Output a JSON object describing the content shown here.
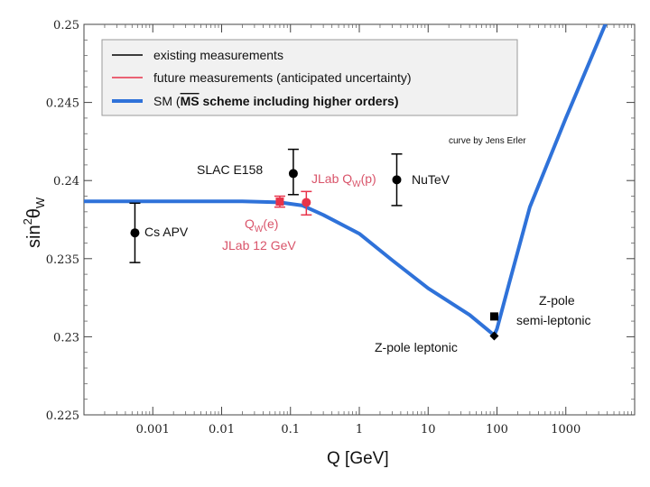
{
  "chart_data": {
    "type": "scatter",
    "title": "",
    "xlabel": "Q [GeV]",
    "ylabel_base": "sin",
    "ylabel_sup": "2",
    "ylabel_theta": "θ",
    "ylabel_sub": "W",
    "xscale": "log",
    "xlim": [
      0.0001,
      10000
    ],
    "ylim": [
      0.225,
      0.25
    ],
    "x_ticks": [
      {
        "v": 0.001,
        "label": "0.001"
      },
      {
        "v": 0.01,
        "label": "0.01"
      },
      {
        "v": 0.1,
        "label": "0.1"
      },
      {
        "v": 1,
        "label": "1"
      },
      {
        "v": 10,
        "label": "10"
      },
      {
        "v": 100,
        "label": "100"
      },
      {
        "v": 1000,
        "label": "1000"
      }
    ],
    "y_ticks": [
      {
        "v": 0.225,
        "label": "0.225"
      },
      {
        "v": 0.23,
        "label": "0.23"
      },
      {
        "v": 0.235,
        "label": "0.235"
      },
      {
        "v": 0.24,
        "label": "0.24"
      },
      {
        "v": 0.245,
        "label": "0.245"
      },
      {
        "v": 0.25,
        "label": "0.25"
      }
    ],
    "legend": [
      {
        "label": "existing measurements",
        "color": "#000000",
        "style": "thin"
      },
      {
        "label": "future measurements (anticipated uncertainty)",
        "color": "#e8334a",
        "style": "thin"
      },
      {
        "label_pre": "SM (",
        "label_ms": "MS",
        "label_post": " scheme including higher orders)",
        "color": "#2f72d9",
        "style": "thick"
      }
    ],
    "annotation_credit": "curve by Jens Erler",
    "sm_curve": [
      {
        "x": 0.0001,
        "y": 0.23867
      },
      {
        "x": 0.02,
        "y": 0.23867
      },
      {
        "x": 0.07,
        "y": 0.2386
      },
      {
        "x": 0.15,
        "y": 0.2384
      },
      {
        "x": 0.3,
        "y": 0.2378
      },
      {
        "x": 1,
        "y": 0.2366
      },
      {
        "x": 3,
        "y": 0.2349
      },
      {
        "x": 10,
        "y": 0.2331
      },
      {
        "x": 40,
        "y": 0.2314
      },
      {
        "x": 91.19,
        "y": 0.2301
      },
      {
        "x": 100,
        "y": 0.2305
      },
      {
        "x": 150,
        "y": 0.2334
      },
      {
        "x": 300,
        "y": 0.2383
      },
      {
        "x": 1000,
        "y": 0.244
      },
      {
        "x": 4000,
        "y": 0.2503
      }
    ],
    "points": [
      {
        "name": "Cs APV",
        "x": 0.00055,
        "y": 0.23665,
        "lo": 0.23475,
        "hi": 0.23855,
        "kind": "existing",
        "marker": "circle",
        "label": "Cs APV"
      },
      {
        "name": "SLAC E158",
        "x": 0.11,
        "y": 0.24045,
        "lo": 0.2391,
        "hi": 0.242,
        "kind": "existing",
        "marker": "circle",
        "label": "SLAC E158"
      },
      {
        "name": "NuTeV",
        "x": 3.5,
        "y": 0.24005,
        "lo": 0.2384,
        "hi": 0.2417,
        "kind": "existing",
        "marker": "circle",
        "label": "NuTeV"
      },
      {
        "name": "Z-pole leptonic",
        "x": 91.19,
        "y": 0.23005,
        "lo": 0.23005,
        "hi": 0.23005,
        "kind": "existing",
        "marker": "diamond",
        "label": "Z-pole leptonic"
      },
      {
        "name": "Z-pole semi-leptonic",
        "x": 91.19,
        "y": 0.2313,
        "lo": 0.2313,
        "hi": 0.2313,
        "kind": "existing",
        "marker": "square",
        "label_line1": "Z-pole",
        "label_line2": "semi-leptonic"
      },
      {
        "name": "Qw(e)",
        "x": 0.07,
        "y": 0.23865,
        "lo": 0.2383,
        "hi": 0.239,
        "kind": "future",
        "marker": "square"
      },
      {
        "name": "JLab Qw(p)",
        "x": 0.17,
        "y": 0.2386,
        "lo": 0.2378,
        "hi": 0.2393,
        "kind": "future",
        "marker": "circle"
      }
    ],
    "future_labels": {
      "qwp_pre": "JLab Q",
      "qwp_sub": "W",
      "qwp_post": "(p)",
      "qwe_pre": "Q",
      "qwe_sub": "W",
      "qwe_post": "(e)",
      "qwe_line2": "JLab 12 GeV"
    },
    "colors": {
      "existing": "#000000",
      "future": "#e8334a",
      "future_text": "#d9546a",
      "sm": "#2f72d9"
    }
  }
}
